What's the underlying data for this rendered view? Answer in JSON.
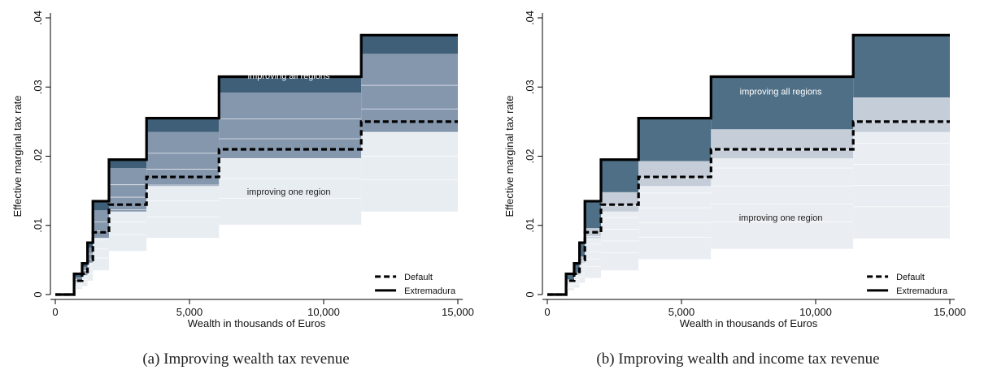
{
  "chart_data": [
    {
      "type": "line",
      "panel": "a",
      "caption": "(a) Improving wealth tax revenue",
      "xlabel": "Wealth in thousands of Euros",
      "ylabel": "Effective marginal tax rate",
      "xlim": [
        0,
        15000
      ],
      "ylim": [
        0,
        0.04
      ],
      "x_ticks": [
        {
          "value": 0,
          "label": "0"
        },
        {
          "value": 5000,
          "label": "5,000"
        },
        {
          "value": 10000,
          "label": "10,000"
        },
        {
          "value": 15000,
          "label": "15,000"
        }
      ],
      "y_ticks": [
        {
          "value": 0,
          "label": "0"
        },
        {
          "value": 0.01,
          "label": ".01"
        },
        {
          "value": 0.02,
          "label": ".02"
        },
        {
          "value": 0.03,
          "label": ".03"
        },
        {
          "value": 0.04,
          "label": ".04"
        }
      ],
      "grid": false,
      "legend": {
        "placement": "bottom-right",
        "entries": [
          "Default",
          "Extremadura"
        ]
      },
      "annotations": [
        {
          "text": "improving all regions",
          "x": 8700,
          "y": 0.0312
        },
        {
          "text": "improving one region",
          "x": 8700,
          "y": 0.0144
        }
      ],
      "brackets": [
        0,
        700,
        1000,
        1200,
        1400,
        2000,
        3400,
        6100,
        11400,
        15000
      ],
      "series": [
        {
          "name": "Extremadura",
          "style": "solid",
          "values": [
            0,
            0.003,
            0.0045,
            0.0075,
            0.0135,
            0.0195,
            0.0255,
            0.0315,
            0.0375
          ]
        },
        {
          "name": "Default",
          "style": "dashed",
          "values": [
            0,
            0.002,
            0.003,
            0.005,
            0.009,
            0.013,
            0.017,
            0.021,
            0.025
          ]
        }
      ],
      "regions": {
        "dark_from": [
          0,
          0.0025,
          0.004,
          0.0068,
          0.0122,
          0.0183,
          0.0235,
          0.0292,
          0.0348
        ],
        "mid_from": [
          0,
          0.0018,
          0.0028,
          0.0046,
          0.0082,
          0.012,
          0.0157,
          0.0197,
          0.0235
        ],
        "light_from": [
          0,
          0.0008,
          0.0012,
          0.002,
          0.0035,
          0.0063,
          0.0082,
          0.0101,
          0.012
        ]
      },
      "colors": {
        "dark": "#3f5f78",
        "mid": "#8597ad",
        "light": "#e8edf2",
        "line": "#000000"
      }
    },
    {
      "type": "line",
      "panel": "b",
      "caption": "(b) Improving wealth and income tax revenue",
      "xlabel": "Wealth in thousands of Euros",
      "ylabel": "Effective marginal tax rate",
      "xlim": [
        0,
        15000
      ],
      "ylim": [
        0,
        0.04
      ],
      "x_ticks": [
        {
          "value": 0,
          "label": "0"
        },
        {
          "value": 5000,
          "label": "5,000"
        },
        {
          "value": 10000,
          "label": "10,000"
        },
        {
          "value": 15000,
          "label": "15,000"
        }
      ],
      "y_ticks": [
        {
          "value": 0,
          "label": "0"
        },
        {
          "value": 0.01,
          "label": ".01"
        },
        {
          "value": 0.02,
          "label": ".02"
        },
        {
          "value": 0.03,
          "label": ".03"
        },
        {
          "value": 0.04,
          "label": ".04"
        }
      ],
      "grid": false,
      "legend": {
        "placement": "bottom-right",
        "entries": [
          "Default",
          "Extremadura"
        ]
      },
      "annotations": [
        {
          "text": "improving all regions",
          "x": 8700,
          "y": 0.0289
        },
        {
          "text": "improving one region",
          "x": 8700,
          "y": 0.0107
        }
      ],
      "brackets": [
        0,
        700,
        1000,
        1200,
        1400,
        2000,
        3400,
        6100,
        11400,
        15000
      ],
      "series": [
        {
          "name": "Extremadura",
          "style": "solid",
          "values": [
            0,
            0.003,
            0.0045,
            0.0075,
            0.0135,
            0.0195,
            0.0255,
            0.0315,
            0.0375
          ]
        },
        {
          "name": "Default",
          "style": "dashed",
          "values": [
            0,
            0.002,
            0.003,
            0.005,
            0.009,
            0.013,
            0.017,
            0.021,
            0.025
          ]
        }
      ],
      "regions": {
        "dark_from": [
          0,
          0.0022,
          0.0032,
          0.0055,
          0.0096,
          0.0148,
          0.0193,
          0.0239,
          0.0285
        ],
        "mid_from": [
          0,
          0.0018,
          0.0028,
          0.0046,
          0.0082,
          0.012,
          0.0157,
          0.0197,
          0.0235
        ],
        "light_from": [
          0,
          0.0006,
          0.001,
          0.0017,
          0.0024,
          0.0035,
          0.0051,
          0.0066,
          0.0081
        ]
      },
      "colors": {
        "dark": "#4f6f86",
        "mid": "#c4cdd8",
        "light": "#eaeef2",
        "line": "#000000"
      }
    }
  ]
}
